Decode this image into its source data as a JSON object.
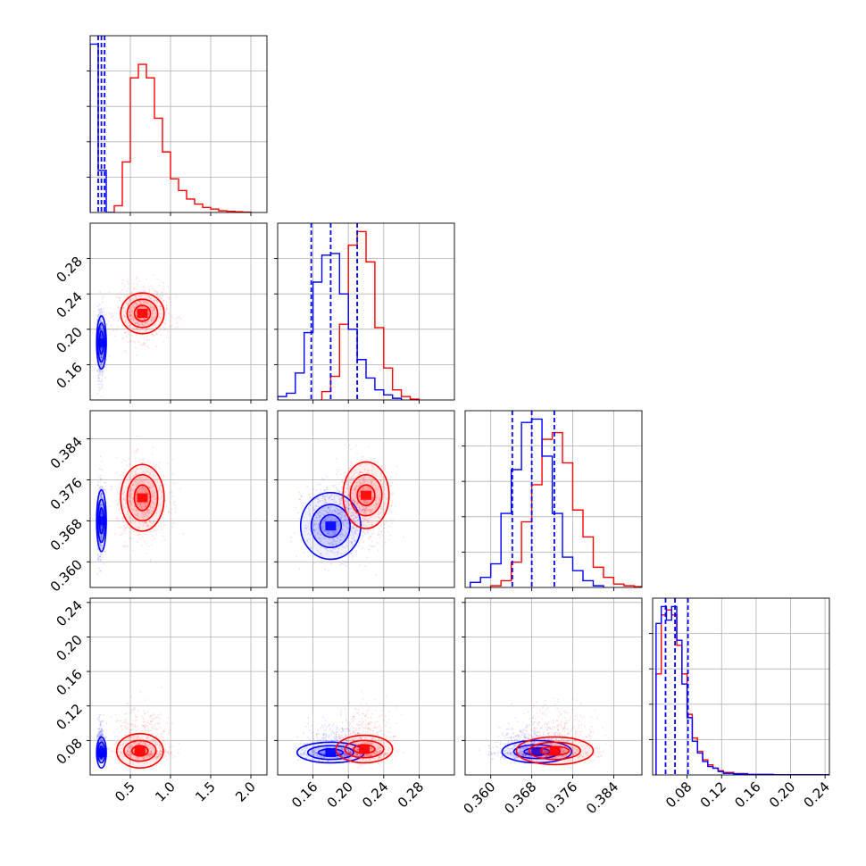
{
  "chart_data": {
    "type": "corner",
    "title": "",
    "grid": true,
    "parameters": [
      {
        "range": [
          0.0,
          2.2
        ],
        "ticks": [
          0.5,
          1.0,
          1.5,
          2.0
        ],
        "tick_labels": [
          "0.5",
          "1.0",
          "1.5",
          "2.0"
        ],
        "quantiles": [
          0.1,
          0.14,
          0.18
        ],
        "blue_hist": {
          "edges": [
            0.0,
            0.1,
            0.2,
            0.3
          ],
          "counts": [
            1.0,
            0.25,
            0.0
          ]
        },
        "red_hist": {
          "edges": [
            0.3,
            0.4,
            0.5,
            0.6,
            0.7,
            0.8,
            0.9,
            1.0,
            1.1,
            1.2,
            1.3,
            1.4,
            1.5,
            1.6,
            1.7,
            1.8,
            1.9,
            2.0
          ],
          "counts": [
            0.04,
            0.3,
            0.8,
            0.88,
            0.8,
            0.56,
            0.36,
            0.2,
            0.13,
            0.08,
            0.05,
            0.03,
            0.02,
            0.01,
            0.007,
            0.004,
            0.002
          ]
        }
      },
      {
        "range": [
          0.12,
          0.32
        ],
        "ticks": [
          0.16,
          0.2,
          0.24,
          0.28
        ],
        "tick_labels": [
          "0.16",
          "0.20",
          "0.24",
          "0.28"
        ],
        "quantiles": [
          0.158,
          0.18,
          0.21
        ],
        "blue_hist": {
          "edges": [
            0.12,
            0.13,
            0.14,
            0.15,
            0.16,
            0.17,
            0.18,
            0.19,
            0.2,
            0.21,
            0.22,
            0.23,
            0.24,
            0.25,
            0.26
          ],
          "counts": [
            0.02,
            0.04,
            0.16,
            0.4,
            0.7,
            0.86,
            0.87,
            0.63,
            0.42,
            0.24,
            0.13,
            0.06,
            0.03,
            0.01
          ]
        },
        "red_hist": {
          "edges": [
            0.17,
            0.18,
            0.19,
            0.2,
            0.21,
            0.22,
            0.23,
            0.24,
            0.25,
            0.26,
            0.27,
            0.28
          ],
          "counts": [
            0.05,
            0.14,
            0.45,
            0.92,
            1.0,
            0.82,
            0.43,
            0.19,
            0.06,
            0.02,
            0.005
          ]
        }
      },
      {
        "range": [
          0.355,
          0.3895
        ],
        "ticks": [
          0.36,
          0.368,
          0.376,
          0.384
        ],
        "tick_labels": [
          "0.360",
          "0.368",
          "0.376",
          "0.384"
        ],
        "quantiles": [
          0.3642,
          0.368,
          0.3724
        ],
        "blue_hist": {
          "edges": [
            0.356,
            0.358,
            0.36,
            0.362,
            0.364,
            0.366,
            0.368,
            0.37,
            0.372,
            0.374,
            0.376,
            0.378,
            0.38,
            0.382
          ],
          "counts": [
            0.03,
            0.06,
            0.14,
            0.44,
            0.7,
            0.98,
            1.0,
            0.78,
            0.44,
            0.18,
            0.1,
            0.04,
            0.01
          ]
        },
        "red_hist": {
          "edges": [
            0.36,
            0.362,
            0.364,
            0.366,
            0.368,
            0.37,
            0.372,
            0.374,
            0.376,
            0.378,
            0.38,
            0.382,
            0.384,
            0.386,
            0.388,
            0.3895
          ],
          "counts": [
            0.01,
            0.04,
            0.15,
            0.39,
            0.61,
            0.88,
            0.92,
            0.74,
            0.46,
            0.3,
            0.12,
            0.06,
            0.02,
            0.01,
            0.005
          ]
        }
      },
      {
        "range": [
          0.04,
          0.245
        ],
        "ticks": [
          0.08,
          0.12,
          0.16,
          0.2,
          0.24
        ],
        "tick_labels": [
          "0.08",
          "0.12",
          "0.16",
          "0.20",
          "0.24"
        ],
        "quantiles": [
          0.055,
          0.066,
          0.081
        ],
        "blue_hist": {
          "edges": [
            0.044,
            0.05,
            0.056,
            0.062,
            0.068,
            0.074,
            0.08,
            0.086,
            0.092,
            0.098,
            0.104,
            0.11,
            0.116,
            0.122,
            0.134,
            0.15,
            0.18,
            0.245
          ],
          "counts": [
            0.9,
            1.0,
            0.92,
            1.0,
            0.8,
            0.54,
            0.34,
            0.2,
            0.13,
            0.08,
            0.05,
            0.04,
            0.02,
            0.01,
            0.006,
            0.003,
            0.001
          ]
        },
        "red_hist": {
          "edges": [
            0.044,
            0.05,
            0.056,
            0.062,
            0.068,
            0.074,
            0.08,
            0.086,
            0.092,
            0.098,
            0.104,
            0.11,
            0.116,
            0.122,
            0.134,
            0.15,
            0.18,
            0.245
          ],
          "counts": [
            0.6,
            0.95,
            0.98,
            0.95,
            0.77,
            0.6,
            0.36,
            0.22,
            0.14,
            0.09,
            0.06,
            0.04,
            0.025,
            0.015,
            0.008,
            0.003,
            0.001
          ]
        }
      }
    ],
    "datasets": [
      {
        "color": "#0000ff",
        "mean": [
          0.14,
          0.185,
          0.368,
          0.066
        ],
        "std": [
          0.03,
          0.018,
          0.0035,
          0.012
        ],
        "contours": [
          {
            "pair": [
              0,
              1
            ],
            "center": [
              0.14,
              0.185
            ],
            "radii": [
              [
                0.025,
                0.013
              ],
              [
                0.045,
                0.022
              ],
              [
                0.06,
                0.03
              ]
            ],
            "angle": 0
          },
          {
            "pair": [
              0,
              2
            ],
            "center": [
              0.14,
              0.368
            ],
            "radii": [
              [
                0.025,
                0.0025
              ],
              [
                0.045,
                0.0042
              ],
              [
                0.06,
                0.006
              ]
            ],
            "angle": 0
          },
          {
            "pair": [
              0,
              3
            ],
            "center": [
              0.14,
              0.066
            ],
            "radii": [
              [
                0.025,
                0.007
              ],
              [
                0.045,
                0.012
              ],
              [
                0.06,
                0.018
              ]
            ],
            "angle": 0
          },
          {
            "pair": [
              1,
              2
            ],
            "center": [
              0.18,
              0.367
            ],
            "radii": [
              [
                0.012,
                0.0022
              ],
              [
                0.022,
                0.0042
              ],
              [
                0.034,
                0.0065
              ]
            ],
            "angle": 0
          },
          {
            "pair": [
              1,
              3
            ],
            "center": [
              0.18,
              0.066
            ],
            "radii": [
              [
                0.014,
                0.004
              ],
              [
                0.026,
                0.008
              ],
              [
                0.038,
                0.012
              ]
            ],
            "angle": 0
          },
          {
            "pair": [
              2,
              3
            ],
            "center": [
              0.369,
              0.067
            ],
            "radii": [
              [
                0.0025,
                0.004
              ],
              [
                0.0045,
                0.008
              ],
              [
                0.0068,
                0.013
              ]
            ],
            "angle": 0
          }
        ]
      },
      {
        "color": "#ff0000",
        "mean": [
          0.65,
          0.218,
          0.372,
          0.068
        ],
        "std": [
          0.16,
          0.015,
          0.0038,
          0.018
        ],
        "contours": [
          {
            "pair": [
              0,
              1
            ],
            "center": [
              0.65,
              0.218
            ],
            "radii": [
              [
                0.1,
                0.009
              ],
              [
                0.19,
                0.016
              ],
              [
                0.27,
                0.023
              ]
            ],
            "angle": 0
          },
          {
            "pair": [
              0,
              2
            ],
            "center": [
              0.65,
              0.3725
            ],
            "radii": [
              [
                0.1,
                0.0025
              ],
              [
                0.19,
                0.0045
              ],
              [
                0.27,
                0.0065
              ]
            ],
            "angle": 0
          },
          {
            "pair": [
              0,
              3
            ],
            "center": [
              0.62,
              0.068
            ],
            "radii": [
              [
                0.1,
                0.006
              ],
              [
                0.2,
                0.012
              ],
              [
                0.29,
                0.02
              ]
            ],
            "angle": 0
          },
          {
            "pair": [
              1,
              2
            ],
            "center": [
              0.22,
              0.373
            ],
            "radii": [
              [
                0.01,
                0.002
              ],
              [
                0.018,
                0.004
              ],
              [
                0.026,
                0.0065
              ]
            ],
            "angle": 0
          },
          {
            "pair": [
              1,
              3
            ],
            "center": [
              0.218,
              0.07
            ],
            "radii": [
              [
                0.012,
                0.005
              ],
              [
                0.022,
                0.01
              ],
              [
                0.032,
                0.016
              ]
            ],
            "angle": 0
          },
          {
            "pair": [
              2,
              3
            ],
            "center": [
              0.3725,
              0.068
            ],
            "radii": [
              [
                0.0028,
                0.005
              ],
              [
                0.005,
                0.01
              ],
              [
                0.0075,
                0.016
              ]
            ],
            "angle": 0
          }
        ]
      }
    ]
  }
}
